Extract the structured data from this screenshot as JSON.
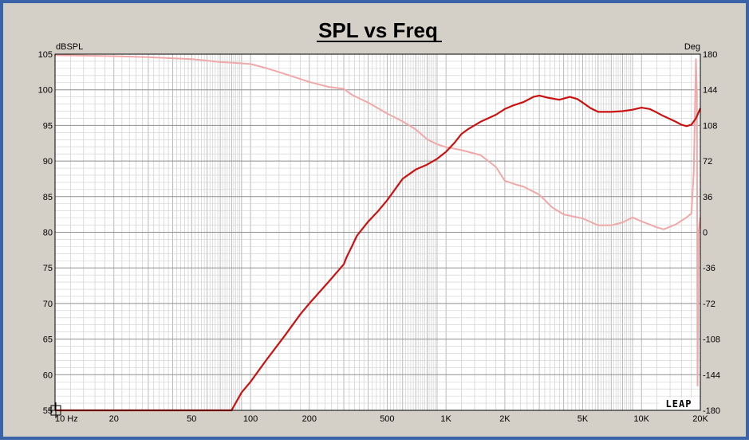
{
  "chart_data": {
    "type": "line",
    "title": "SPL vs Freq",
    "ylabel": "dBSPL",
    "y2label": "Deg",
    "xscale": "log",
    "xlim": [
      10,
      20000
    ],
    "ylim": [
      55,
      105
    ],
    "y2lim": [
      -180,
      180
    ],
    "grid": true,
    "x_ticks": [
      {
        "value": 10,
        "label": "10 Hz"
      },
      {
        "value": 20,
        "label": "20"
      },
      {
        "value": 50,
        "label": "50"
      },
      {
        "value": 100,
        "label": "100"
      },
      {
        "value": 200,
        "label": "200"
      },
      {
        "value": 500,
        "label": "500"
      },
      {
        "value": 1000,
        "label": "1K"
      },
      {
        "value": 2000,
        "label": "2K"
      },
      {
        "value": 5000,
        "label": "5K"
      },
      {
        "value": 10000,
        "label": "10K"
      },
      {
        "value": 20000,
        "label": "20K"
      }
    ],
    "y_ticks": [
      {
        "value": 55,
        "label": "55"
      },
      {
        "value": 60,
        "label": "60"
      },
      {
        "value": 65,
        "label": "65"
      },
      {
        "value": 70,
        "label": "70"
      },
      {
        "value": 75,
        "label": "75"
      },
      {
        "value": 80,
        "label": "80"
      },
      {
        "value": 85,
        "label": "85"
      },
      {
        "value": 90,
        "label": "90"
      },
      {
        "value": 95,
        "label": "95"
      },
      {
        "value": 100,
        "label": "100"
      },
      {
        "value": 105,
        "label": "105"
      }
    ],
    "y2_ticks": [
      {
        "value": -180,
        "label": "-180"
      },
      {
        "value": -144,
        "label": "-144"
      },
      {
        "value": -108,
        "label": "-108"
      },
      {
        "value": -72,
        "label": "-72"
      },
      {
        "value": -36,
        "label": "-36"
      },
      {
        "value": 0,
        "label": "0"
      },
      {
        "value": 36,
        "label": "36"
      },
      {
        "value": 72,
        "label": "72"
      },
      {
        "value": 108,
        "label": "108"
      },
      {
        "value": 144,
        "label": "144"
      },
      {
        "value": 180,
        "label": "180"
      }
    ],
    "logo": "LEAP",
    "series": [
      {
        "axis": "left",
        "color": "#cc1111",
        "points": [
          [
            10,
            55
          ],
          [
            80,
            55
          ],
          [
            90,
            57.5
          ],
          [
            100,
            59
          ],
          [
            120,
            62
          ],
          [
            150,
            65.5
          ],
          [
            180,
            68.5
          ],
          [
            200,
            70
          ],
          [
            250,
            73
          ],
          [
            300,
            75.5
          ],
          [
            310,
            76.5
          ],
          [
            330,
            78
          ],
          [
            350,
            79.5
          ],
          [
            400,
            81.5
          ],
          [
            450,
            83
          ],
          [
            500,
            84.5
          ],
          [
            600,
            87.5
          ],
          [
            700,
            88.8
          ],
          [
            800,
            89.5
          ],
          [
            900,
            90.3
          ],
          [
            1000,
            91.3
          ],
          [
            1100,
            92.5
          ],
          [
            1200,
            93.8
          ],
          [
            1300,
            94.5
          ],
          [
            1500,
            95.5
          ],
          [
            1800,
            96.5
          ],
          [
            2000,
            97.3
          ],
          [
            2200,
            97.8
          ],
          [
            2500,
            98.3
          ],
          [
            2800,
            99
          ],
          [
            3000,
            99.2
          ],
          [
            3300,
            98.9
          ],
          [
            3800,
            98.6
          ],
          [
            4300,
            99
          ],
          [
            4700,
            98.7
          ],
          [
            5000,
            98.2
          ],
          [
            5500,
            97.4
          ],
          [
            6000,
            96.9
          ],
          [
            7000,
            96.9
          ],
          [
            8000,
            97
          ],
          [
            9000,
            97.2
          ],
          [
            10000,
            97.5
          ],
          [
            11000,
            97.3
          ],
          [
            12000,
            96.8
          ],
          [
            13000,
            96.3
          ],
          [
            14000,
            95.9
          ],
          [
            15000,
            95.5
          ],
          [
            16000,
            95.1
          ],
          [
            17000,
            94.9
          ],
          [
            18000,
            95.1
          ],
          [
            19000,
            96
          ],
          [
            20000,
            97.4
          ]
        ]
      },
      {
        "axis": "right",
        "color": "#f0a8a8",
        "points": [
          [
            10,
            179
          ],
          [
            20,
            178
          ],
          [
            30,
            177
          ],
          [
            50,
            175
          ],
          [
            60,
            173.5
          ],
          [
            70,
            172
          ],
          [
            80,
            171.5
          ],
          [
            100,
            170
          ],
          [
            120,
            166
          ],
          [
            150,
            160
          ],
          [
            200,
            152
          ],
          [
            250,
            147
          ],
          [
            300,
            145
          ],
          [
            330,
            139
          ],
          [
            400,
            131
          ],
          [
            500,
            120
          ],
          [
            600,
            112
          ],
          [
            700,
            104
          ],
          [
            800,
            94
          ],
          [
            900,
            89
          ],
          [
            1000,
            86
          ],
          [
            1200,
            83
          ],
          [
            1500,
            78
          ],
          [
            1800,
            66
          ],
          [
            2000,
            52
          ],
          [
            2300,
            48
          ],
          [
            2500,
            46
          ],
          [
            3000,
            38
          ],
          [
            3500,
            25
          ],
          [
            4000,
            18
          ],
          [
            5000,
            14
          ],
          [
            6000,
            7
          ],
          [
            7000,
            7
          ],
          [
            8000,
            10
          ],
          [
            9000,
            15
          ],
          [
            10000,
            11
          ],
          [
            12000,
            5
          ],
          [
            13000,
            3
          ],
          [
            15000,
            8
          ],
          [
            17000,
            15
          ],
          [
            18000,
            19
          ],
          [
            18500,
            60
          ],
          [
            19000,
            175
          ],
          [
            19200,
            140
          ],
          [
            19350,
            -155
          ],
          [
            19600,
            0
          ],
          [
            20000,
            15
          ]
        ]
      }
    ]
  }
}
